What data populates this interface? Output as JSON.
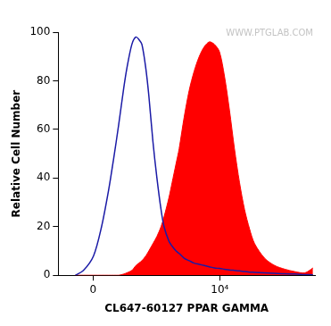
{
  "chart_data": {
    "type": "line",
    "x_label": "CL647-60127 PPAR GAMMA",
    "y_label": "Relative Cell Number",
    "annotations": [
      "WWW.PTGLAB.COM"
    ],
    "x": [
      -270,
      -143,
      6,
      124,
      233,
      317,
      408,
      507,
      573,
      692,
      797,
      882,
      974,
      1107,
      1216,
      1383,
      1564,
      1773,
      1940,
      2250,
      2465,
      2780,
      3040,
      3525,
      4085,
      4735,
      5490,
      6355,
      7365,
      8530,
      9890,
      11450,
      13250,
      15350,
      17800,
      20600,
      23850,
      27600,
      37000,
      49600,
      66500,
      89000,
      119500,
      151000
    ],
    "series": [
      {
        "type": "area",
        "color": "#ff0000",
        "values": [
          0,
          0,
          0,
          0,
          0,
          0,
          0,
          0.5,
          1,
          2,
          4,
          5,
          6,
          8,
          10,
          13,
          16,
          20,
          24,
          32,
          38,
          46,
          52,
          65,
          76,
          84,
          90,
          94,
          96,
          95,
          92,
          82,
          68,
          52,
          38,
          27,
          19,
          13,
          7,
          4,
          2.5,
          1.5,
          1,
          3
        ]
      },
      {
        "type": "line",
        "color": "#1a1aa6",
        "values": [
          0,
          2,
          8,
          20,
          35,
          48,
          62,
          77,
          85,
          95,
          98,
          97,
          95,
          85,
          74,
          55,
          40,
          27,
          20,
          14,
          12,
          10,
          9,
          7,
          6,
          5,
          4.5,
          4,
          3.5,
          3,
          2.8,
          2.5,
          2.2,
          2,
          1.8,
          1.5,
          1.3,
          1.2,
          1,
          0.8,
          0.6,
          0.5,
          0.3,
          0.2
        ]
      }
    ],
    "xlim": [
      -600,
      160000
    ],
    "xticks": [
      0,
      {
        "value": 10000,
        "label": "10⁴"
      }
    ],
    "ylim": [
      0,
      100
    ],
    "yticks": [
      0,
      20,
      40,
      60,
      80,
      100
    ],
    "grid": false
  }
}
